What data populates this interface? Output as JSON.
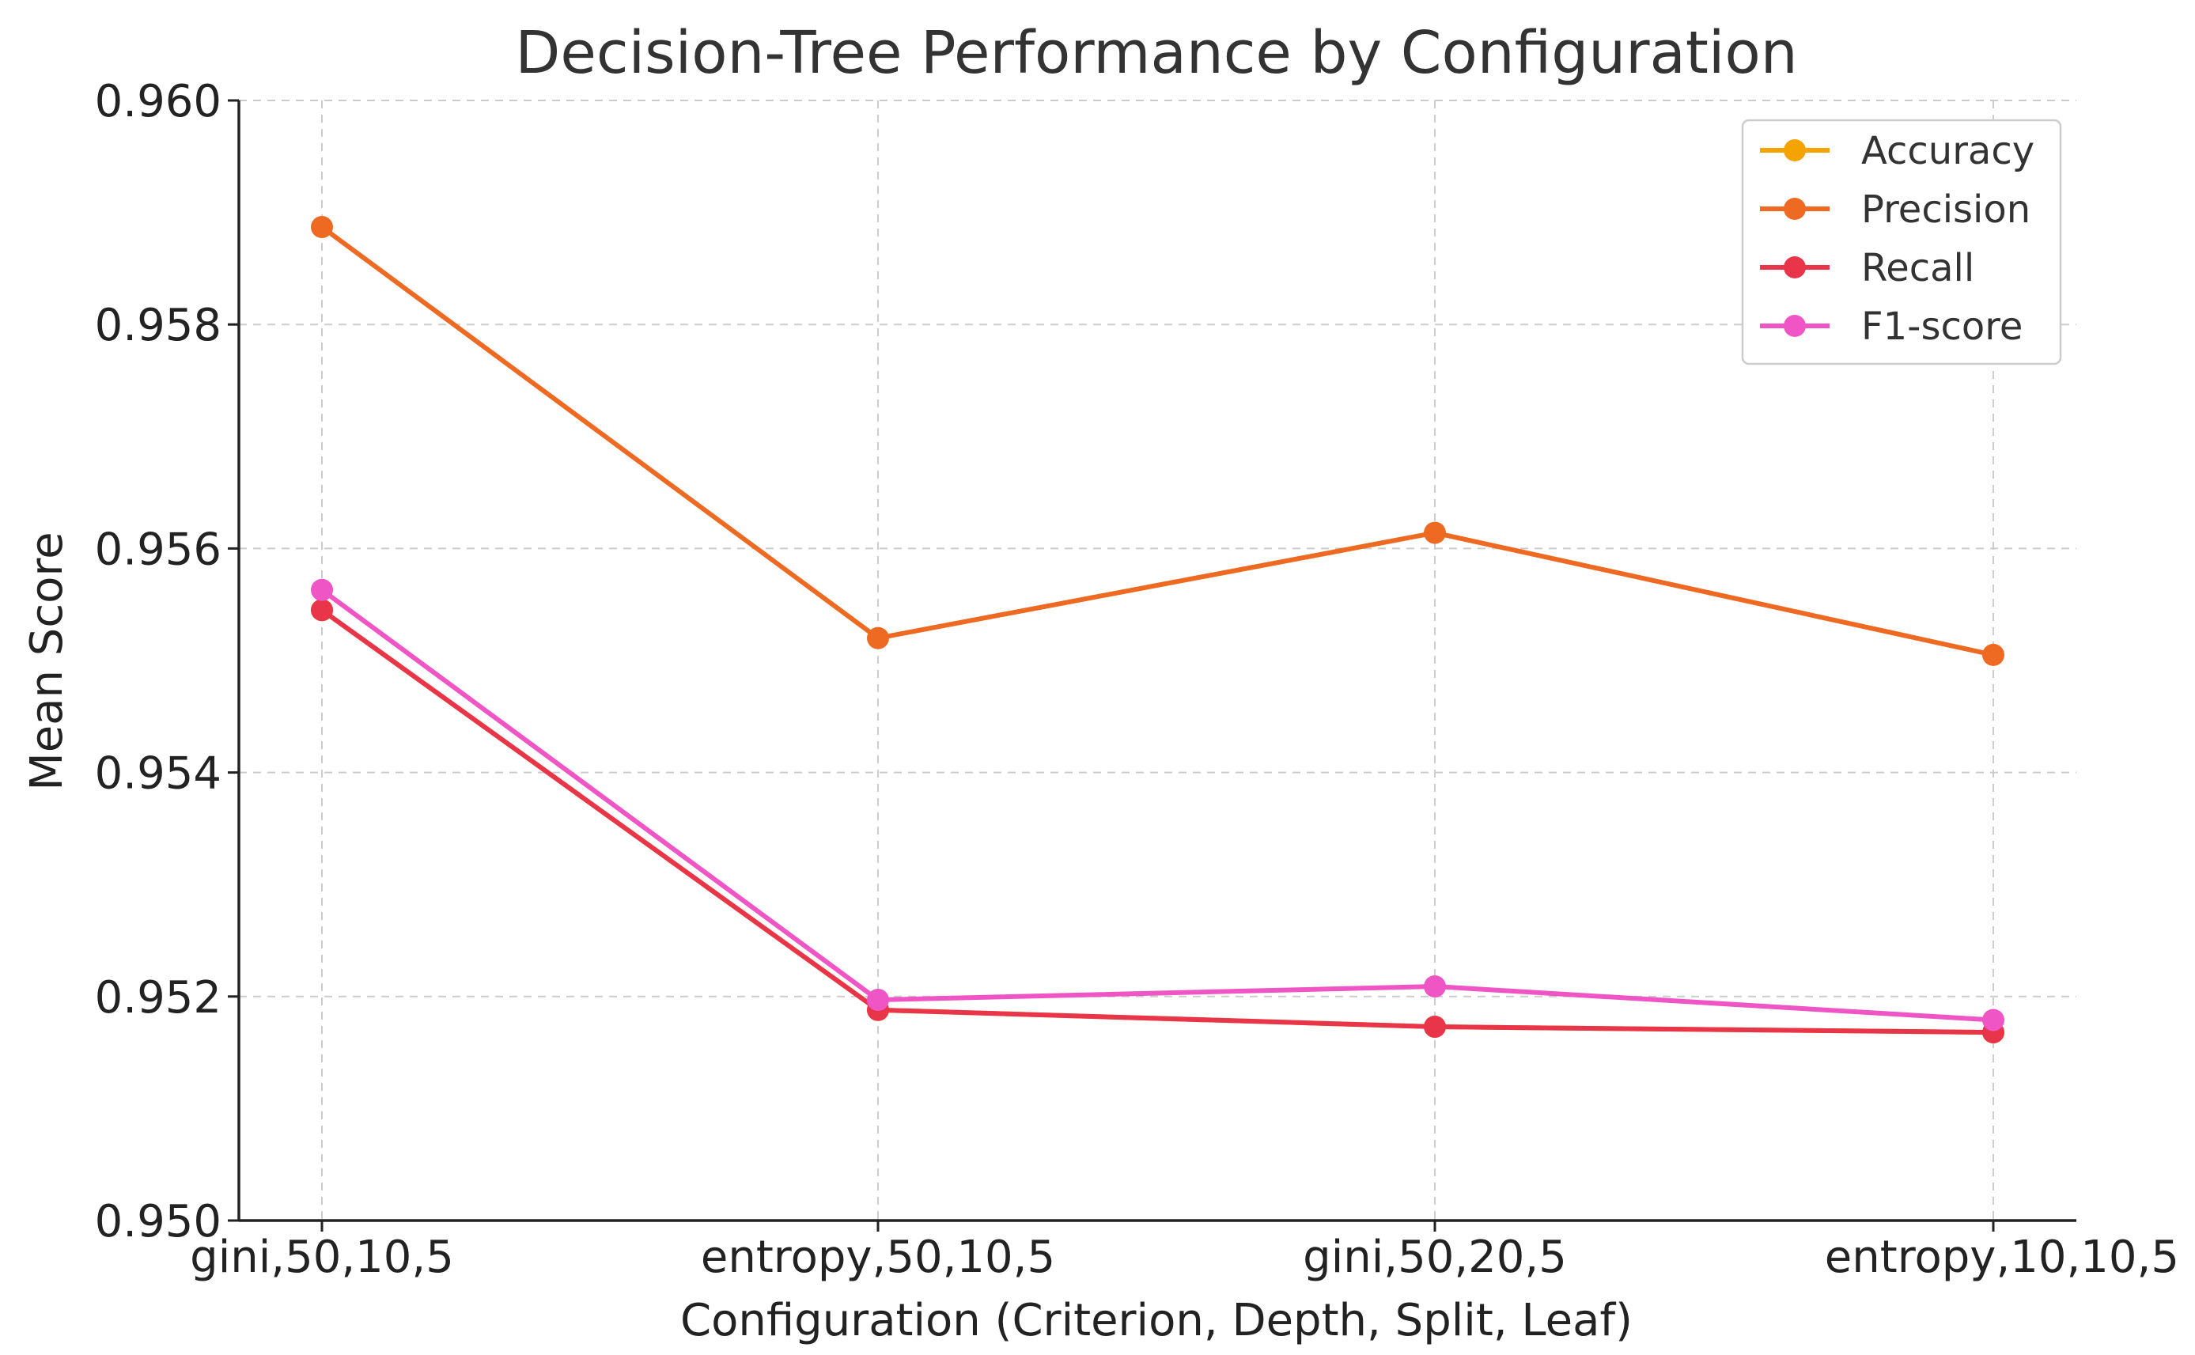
{
  "chart_data": {
    "type": "line",
    "title": "Decision-Tree Performance by Configuration",
    "xlabel": "Configuration (Criterion, Depth, Split, Leaf)",
    "ylabel": "Mean Score",
    "categories": [
      "gini,50,10,5",
      "entropy,50,10,5",
      "gini,50,20,5",
      "entropy,10,10,5"
    ],
    "ylim": [
      0.95,
      0.96
    ],
    "yticks": [
      0.95,
      0.952,
      0.954,
      0.956,
      0.958,
      0.96
    ],
    "ytick_labels": [
      "0.950",
      "0.952",
      "0.954",
      "0.956",
      "0.958",
      "0.960"
    ],
    "grid": true,
    "legend_position": "top-right",
    "series": [
      {
        "name": "Accuracy",
        "color": "#F5A300",
        "values": [
          0.95545,
          0.95188,
          0.95173,
          0.95168
        ]
      },
      {
        "name": "Precision",
        "color": "#EE6A22",
        "values": [
          0.95887,
          0.9552,
          0.95614,
          0.95505
        ]
      },
      {
        "name": "Recall",
        "color": "#E8354A",
        "values": [
          0.95545,
          0.95188,
          0.95173,
          0.95168
        ]
      },
      {
        "name": "F1-score",
        "color": "#EF55C4",
        "values": [
          0.95563,
          0.95197,
          0.95209,
          0.95179
        ]
      }
    ]
  }
}
